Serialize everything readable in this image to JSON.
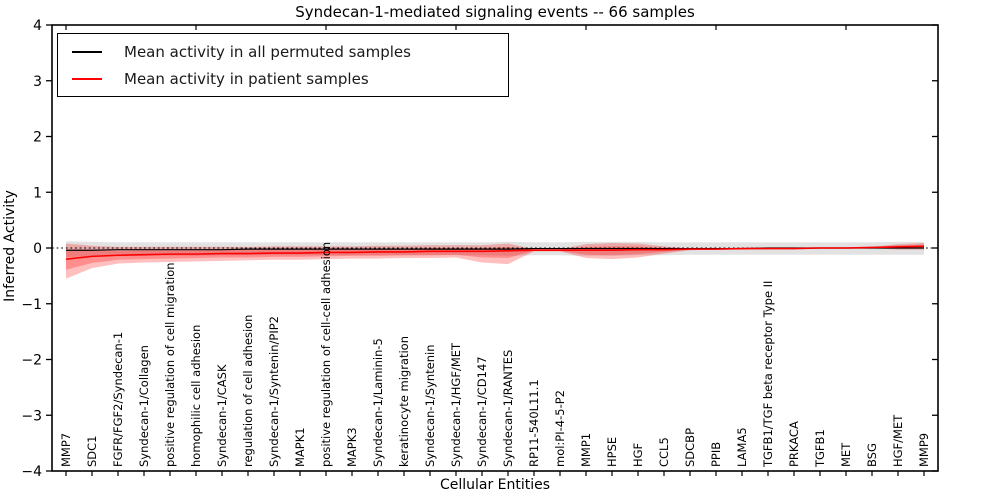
{
  "chart_data": {
    "type": "line",
    "title": "Syndecan-1-mediated signaling events -- 66 samples",
    "xlabel": "Cellular Entities",
    "ylabel": "Inferred Activity",
    "ylim": [
      -4,
      4
    ],
    "yticks": [
      -4,
      -3,
      -2,
      -1,
      0,
      1,
      2,
      3,
      4
    ],
    "grid": false,
    "legend_position": "upper left",
    "zero_line": {
      "value": 0,
      "style": "dotted",
      "color": "#000000"
    },
    "categories": [
      "MMP7",
      "SDC1",
      "FGFR/FGF2/Syndecan-1",
      "Syndecan-1/Collagen",
      "positive regulation of cell migration",
      "homophilic cell adhesion",
      "Syndecan-1/CASK",
      "regulation of cell adhesion",
      "Syndecan-1/Syntenin/PIP2",
      "MAPK1",
      "positive regulation of cell-cell adhesion",
      "MAPK3",
      "Syndecan-1/Laminin-5",
      "keratinocyte migration",
      "Syndecan-1/Syntenin",
      "Syndecan-1/HGF/MET",
      "Syndecan-1/CD147",
      "Syndecan-1/RANTES",
      "RP11-540L11.1",
      "mol:PI-4-5-P2",
      "MMP1",
      "HPSE",
      "HGF",
      "CCL5",
      "SDCBP",
      "PPIB",
      "LAMA5",
      "TGFB1/TGF beta receptor Type II",
      "PRKACA",
      "TGFB1",
      "MET",
      "BSG",
      "HGF/MET",
      "MMP9"
    ],
    "series": [
      {
        "name": "Mean activity in all permuted samples",
        "color": "#000000",
        "values": [
          -0.04,
          -0.04,
          -0.03,
          -0.03,
          -0.03,
          -0.03,
          -0.03,
          -0.02,
          -0.02,
          -0.02,
          -0.02,
          -0.02,
          -0.02,
          -0.02,
          -0.02,
          -0.02,
          -0.02,
          -0.02,
          -0.01,
          -0.01,
          -0.01,
          -0.01,
          -0.01,
          -0.01,
          -0.01,
          -0.01,
          -0.01,
          0.0,
          0.0,
          0.0,
          0.0,
          0.0,
          0.0,
          0.0
        ]
      },
      {
        "name": "Mean activity in patient samples",
        "color": "#ff0000",
        "values": [
          -0.2,
          -0.15,
          -0.13,
          -0.12,
          -0.11,
          -0.11,
          -0.1,
          -0.1,
          -0.09,
          -0.09,
          -0.08,
          -0.08,
          -0.07,
          -0.07,
          -0.06,
          -0.06,
          -0.06,
          -0.05,
          -0.04,
          -0.04,
          -0.04,
          -0.04,
          -0.03,
          -0.03,
          -0.02,
          -0.02,
          -0.01,
          -0.01,
          -0.01,
          0.0,
          0.0,
          0.01,
          0.02,
          0.03
        ]
      }
    ],
    "bands": [
      {
        "name": "permuted-range",
        "color": "#bfbfbf",
        "opacity": 0.45,
        "upper": [
          0.12,
          0.11,
          0.1,
          0.1,
          0.1,
          0.1,
          0.1,
          0.1,
          0.1,
          0.1,
          0.1,
          0.1,
          0.1,
          0.1,
          0.1,
          0.1,
          0.1,
          0.11,
          0.1,
          0.1,
          0.11,
          0.11,
          0.11,
          0.1,
          0.1,
          0.1,
          0.1,
          0.1,
          0.1,
          0.1,
          0.1,
          0.1,
          0.11,
          0.11
        ],
        "lower": [
          -0.16,
          -0.15,
          -0.14,
          -0.14,
          -0.14,
          -0.14,
          -0.13,
          -0.13,
          -0.13,
          -0.13,
          -0.13,
          -0.13,
          -0.13,
          -0.13,
          -0.13,
          -0.13,
          -0.13,
          -0.14,
          -0.13,
          -0.13,
          -0.14,
          -0.14,
          -0.13,
          -0.13,
          -0.12,
          -0.12,
          -0.12,
          -0.12,
          -0.12,
          -0.12,
          -0.12,
          -0.12,
          -0.12,
          -0.12
        ]
      },
      {
        "name": "patient-range-outer",
        "color": "#ff0000",
        "opacity": 0.25,
        "upper": [
          0.08,
          0.04,
          0.02,
          0.02,
          0.02,
          0.02,
          0.02,
          0.02,
          0.03,
          0.03,
          0.03,
          0.03,
          0.04,
          0.04,
          0.05,
          0.05,
          0.05,
          0.08,
          -0.02,
          -0.02,
          0.07,
          0.09,
          0.08,
          0.03,
          -0.01,
          -0.01,
          0.0,
          0.0,
          0.0,
          0.01,
          0.01,
          0.02,
          0.07,
          0.09
        ],
        "lower": [
          -0.55,
          -0.36,
          -0.28,
          -0.26,
          -0.25,
          -0.24,
          -0.23,
          -0.22,
          -0.21,
          -0.21,
          -0.2,
          -0.19,
          -0.19,
          -0.18,
          -0.18,
          -0.17,
          -0.26,
          -0.29,
          -0.06,
          -0.06,
          -0.18,
          -0.2,
          -0.17,
          -0.1,
          -0.04,
          -0.03,
          -0.03,
          -0.02,
          -0.02,
          -0.01,
          -0.01,
          0.0,
          -0.03,
          -0.03
        ]
      },
      {
        "name": "patient-range-inner",
        "color": "#ff0000",
        "opacity": 0.25,
        "upper": [
          -0.05,
          -0.05,
          -0.05,
          -0.04,
          -0.04,
          -0.04,
          -0.03,
          -0.03,
          -0.02,
          -0.02,
          -0.02,
          -0.02,
          -0.01,
          -0.01,
          0.0,
          0.0,
          0.0,
          0.02,
          -0.03,
          -0.03,
          0.02,
          0.03,
          0.03,
          0.0,
          -0.02,
          -0.02,
          -0.01,
          -0.01,
          -0.01,
          0.0,
          0.0,
          0.01,
          0.05,
          0.06
        ],
        "lower": [
          -0.39,
          -0.27,
          -0.21,
          -0.2,
          -0.19,
          -0.18,
          -0.17,
          -0.17,
          -0.16,
          -0.16,
          -0.15,
          -0.14,
          -0.14,
          -0.13,
          -0.13,
          -0.12,
          -0.17,
          -0.18,
          -0.05,
          -0.05,
          -0.12,
          -0.13,
          -0.11,
          -0.07,
          -0.03,
          -0.03,
          -0.02,
          -0.02,
          -0.02,
          -0.01,
          -0.01,
          0.0,
          -0.01,
          0.0
        ]
      }
    ]
  }
}
